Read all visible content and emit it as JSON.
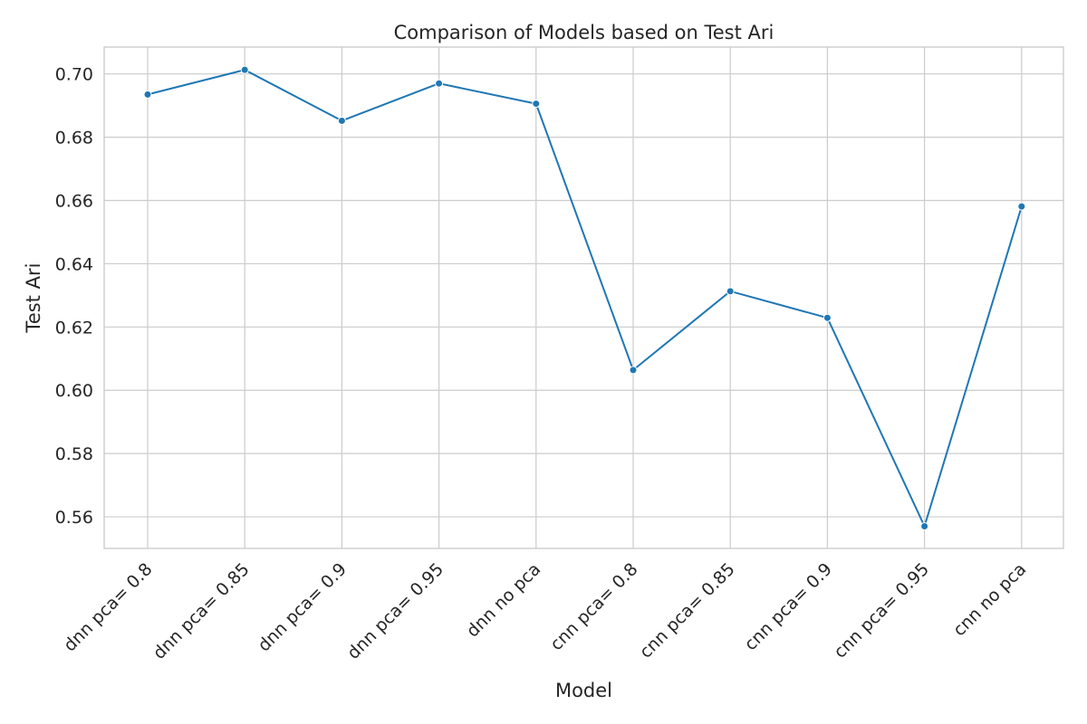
{
  "chart_data": {
    "type": "line",
    "title": "Comparison of Models based on Test Ari",
    "xlabel": "Model",
    "ylabel": "Test Ari",
    "categories": [
      "dnn pca= 0.8",
      "dnn pca= 0.85",
      "dnn pca= 0.9",
      "dnn pca= 0.95",
      "dnn no pca",
      "cnn pca= 0.8",
      "cnn pca= 0.85",
      "cnn pca= 0.9",
      "cnn pca= 0.95",
      "cnn no pca"
    ],
    "series": [
      {
        "values": [
          0.6935,
          0.7013,
          0.6852,
          0.697,
          0.6906,
          0.6064,
          0.6313,
          0.6229,
          0.557,
          0.6581
        ]
      }
    ],
    "ylim": [
      0.55,
      0.7085
    ],
    "yticks": [
      0.56,
      0.58,
      0.6,
      0.62,
      0.64,
      0.66,
      0.68,
      0.7
    ],
    "ytick_labels": [
      "0.56",
      "0.58",
      "0.60",
      "0.62",
      "0.64",
      "0.66",
      "0.68",
      "0.70"
    ],
    "grid": true,
    "line_color": "#1f77b4"
  }
}
